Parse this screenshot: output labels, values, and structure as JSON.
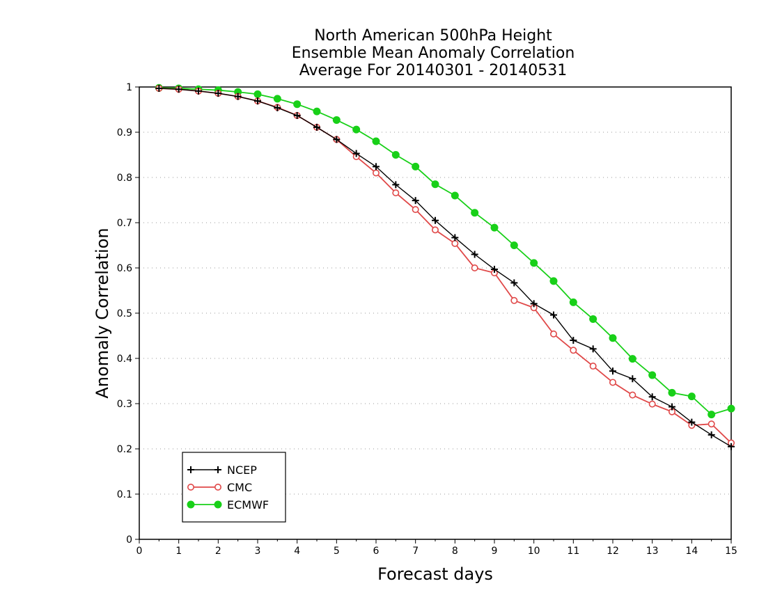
{
  "chart_data": {
    "type": "line",
    "title_lines": [
      "North American 500hPa Height",
      "Ensemble Mean Anomaly Correlation",
      "Average For 20140301 - 20140531"
    ],
    "xlabel": "Forecast days",
    "ylabel": "Anomaly Correlation",
    "xlim": [
      0,
      15
    ],
    "ylim": [
      0,
      1
    ],
    "xticks": [
      "0",
      "1",
      "2",
      "3",
      "4",
      "5",
      "6",
      "7",
      "8",
      "9",
      "10",
      "11",
      "12",
      "13",
      "14",
      "15"
    ],
    "yticks": [
      "0",
      "0.1",
      "0.2",
      "0.3",
      "0.4",
      "0.5",
      "0.6",
      "0.7",
      "0.8",
      "0.9",
      "1"
    ],
    "grid": "horizontal-dotted",
    "legend_position": "bottom-left",
    "x": [
      0.5,
      1,
      1.5,
      2,
      2.5,
      3,
      3.5,
      4,
      4.5,
      5,
      5.5,
      6,
      6.5,
      7,
      7.5,
      8,
      8.5,
      9,
      9.5,
      10,
      10.5,
      11,
      11.5,
      12,
      12.5,
      13,
      13.5,
      14,
      14.5,
      15
    ],
    "series": [
      {
        "name": "NCEP",
        "color": "#000000",
        "marker": "plus",
        "values": [
          0.997,
          0.995,
          0.991,
          0.986,
          0.979,
          0.969,
          0.954,
          0.937,
          0.911,
          0.884,
          0.853,
          0.824,
          0.784,
          0.749,
          0.705,
          0.667,
          0.63,
          0.597,
          0.567,
          0.521,
          0.496,
          0.44,
          0.421,
          0.372,
          0.355,
          0.315,
          0.293,
          0.259,
          0.231,
          0.205
        ]
      },
      {
        "name": "CMC",
        "color": "#e04848",
        "marker": "open-circle",
        "values": [
          0.997,
          0.995,
          0.991,
          0.986,
          0.979,
          0.969,
          0.955,
          0.937,
          0.911,
          0.884,
          0.846,
          0.81,
          0.766,
          0.729,
          0.684,
          0.654,
          0.6,
          0.589,
          0.528,
          0.512,
          0.454,
          0.418,
          0.383,
          0.347,
          0.319,
          0.299,
          0.282,
          0.252,
          0.255,
          0.213
        ]
      },
      {
        "name": "ECMWF",
        "color": "#18d018",
        "marker": "filled-circle",
        "values": [
          0.998,
          0.997,
          0.995,
          0.993,
          0.989,
          0.984,
          0.974,
          0.962,
          0.946,
          0.927,
          0.906,
          0.88,
          0.85,
          0.824,
          0.785,
          0.76,
          0.722,
          0.689,
          0.65,
          0.611,
          0.571,
          0.524,
          0.487,
          0.445,
          0.399,
          0.363,
          0.324,
          0.316,
          0.276,
          0.289
        ]
      }
    ]
  }
}
